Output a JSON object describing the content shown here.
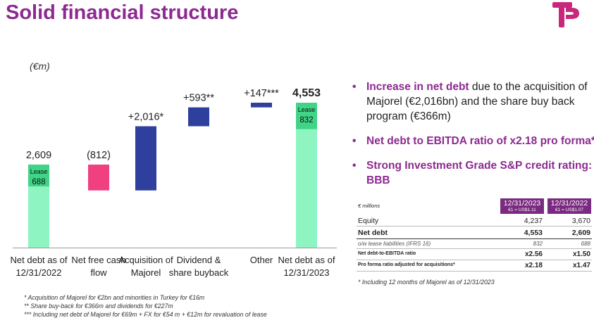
{
  "page": {
    "title": "Solid financial structure",
    "unit": "(€m)",
    "brand_color": "#8c2a8f"
  },
  "chart_data": {
    "type": "waterfall",
    "unit": "€m",
    "ylim": [
      0,
      4800
    ],
    "categories": [
      "Net debt as of 12/31/2022",
      "Net free cash flow",
      "Acquisition of Majorel",
      "Dividend & share buyback",
      "Other",
      "Net debt as of 12/31/2023"
    ],
    "category_lines": [
      [
        "Net debt as of",
        "12/31/2022"
      ],
      [
        "Net free cash",
        "flow"
      ],
      [
        "Acquisition of",
        "Majorel"
      ],
      [
        "Dividend &",
        "share buyback"
      ],
      [
        "Other"
      ],
      [
        "Net debt as of",
        "12/31/2023"
      ]
    ],
    "bars": [
      {
        "kind": "total",
        "start": 0,
        "end": 2609,
        "label": "2,609",
        "bold": false,
        "lease": 688,
        "lease_label": "688",
        "lease_title": "Lease"
      },
      {
        "kind": "delta",
        "start": 2609,
        "end": 1797,
        "label": "(812)",
        "color": "#f04080"
      },
      {
        "kind": "delta",
        "start": 1797,
        "end": 3813,
        "label": "+2,016*",
        "color": "#2e3f9e"
      },
      {
        "kind": "delta",
        "start": 3813,
        "end": 4406,
        "label": "+593**",
        "color": "#2e3f9e"
      },
      {
        "kind": "delta",
        "start": 4406,
        "end": 4553,
        "label": "+147***",
        "color": "#2e3f9e"
      },
      {
        "kind": "total",
        "start": 0,
        "end": 4553,
        "label": "4,553",
        "bold": true,
        "lease": 832,
        "lease_label": "832",
        "lease_title": "Lease"
      }
    ],
    "colors": {
      "total": "#8ef5c2",
      "lease": "#3fd486",
      "up": "#2e3f9e",
      "down": "#f04080"
    }
  },
  "bullets": [
    {
      "highlight": "Increase in net debt",
      "text": " due to the acquisition of Majorel (€2,016bn) and the share buy back program (€366m)"
    },
    {
      "highlight": "Net debt to EBITDA ratio of x2.18 pro forma*",
      "text": ""
    },
    {
      "highlight": "Strong Investment Grade S&P credit rating: BBB",
      "text": ""
    }
  ],
  "table": {
    "unit_label": "€ millions",
    "columns": [
      {
        "date": "12/31/2023",
        "rate": "€1 = US$1.11"
      },
      {
        "date": "12/31/2022",
        "rate": "€1 = US$1.07"
      }
    ],
    "rows": [
      {
        "label": "Equity",
        "v1": "4,237",
        "v2": "3,670",
        "style": "normal"
      },
      {
        "label": "Net debt",
        "v1": "4,553",
        "v2": "2,609",
        "style": "bold"
      },
      {
        "label": "o/w lease liabilities (IFRS 16)",
        "v1": "832",
        "v2": "688",
        "style": "italic"
      },
      {
        "label": "Net debt-to-EBITDA ratio",
        "v1": "x2.56",
        "v2": "x1.50",
        "style": "small"
      },
      {
        "label": "Pro forma ratio adjusted for  acquisitions*",
        "v1": "x2.18",
        "v2": "x1.47",
        "style": "small"
      }
    ],
    "footnote": "* Including 12 months of Majorel as of 12/31/2023"
  },
  "footnotes": [
    "* Acquisition of Majorel for €2bn and minorities in Turkey for €16m",
    "** Share buy-back for €366m and dividends for €227m",
    "*** Including net debt of Majorel for €69m + FX for €54 m + €12m for revaluation of lease"
  ]
}
